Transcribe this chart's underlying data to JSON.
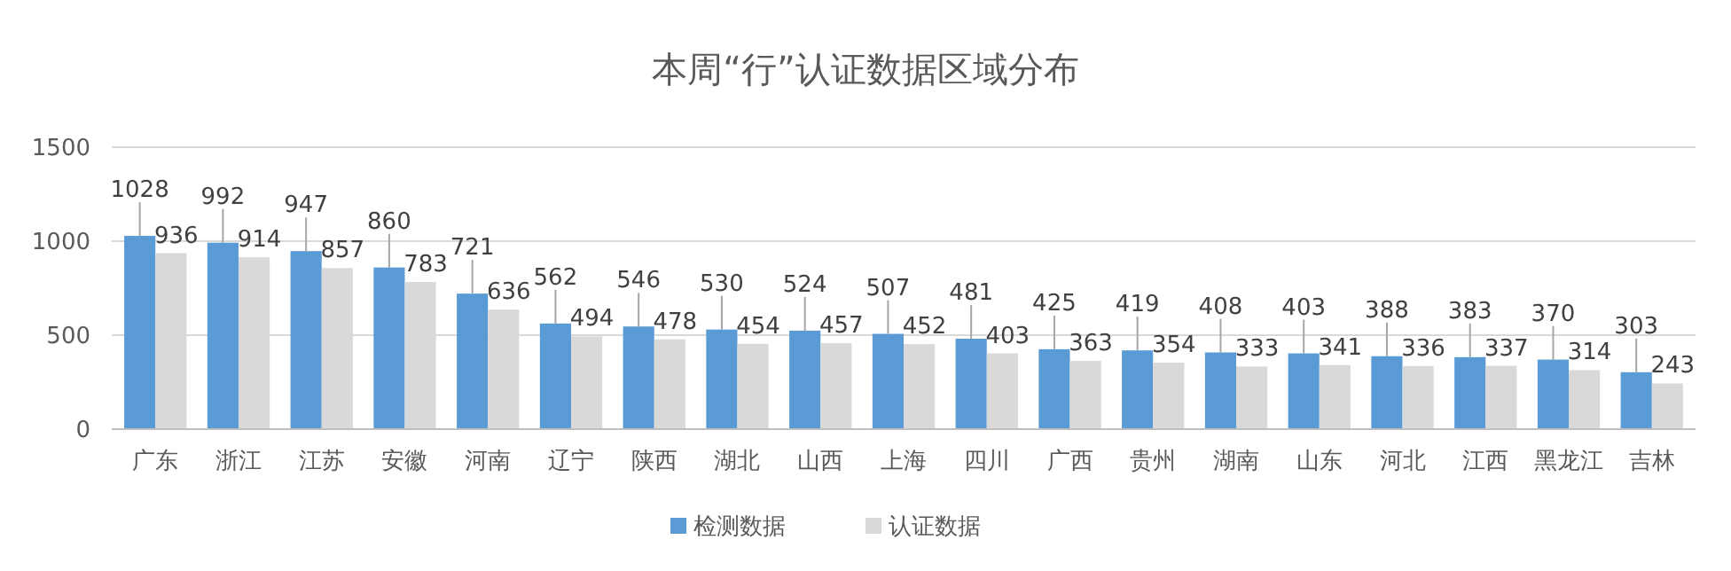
{
  "chart_data": {
    "type": "bar",
    "title": "本周“行”认证数据区域分布",
    "categories": [
      "广东",
      "浙江",
      "江苏",
      "安徽",
      "河南",
      "辽宁",
      "陕西",
      "湖北",
      "山西",
      "上海",
      "四川",
      "广西",
      "贵州",
      "湖南",
      "山东",
      "河北",
      "江西",
      "黑龙江",
      "吉林"
    ],
    "series": [
      {
        "name": "检测数据",
        "color": "#5b9bd5",
        "values": [
          1028,
          992,
          947,
          860,
          721,
          562,
          546,
          530,
          524,
          507,
          481,
          425,
          419,
          408,
          403,
          388,
          383,
          370,
          303
        ]
      },
      {
        "name": "认证数据",
        "color": "#d9d9d9",
        "values": [
          936,
          914,
          857,
          783,
          636,
          494,
          478,
          454,
          457,
          452,
          403,
          363,
          354,
          333,
          341,
          336,
          337,
          314,
          243
        ]
      }
    ],
    "ylim": [
      0,
      1500
    ],
    "yticks": [
      0,
      500,
      1000,
      1500
    ],
    "grid": "y",
    "legend": "bottom",
    "data_labels": true
  }
}
